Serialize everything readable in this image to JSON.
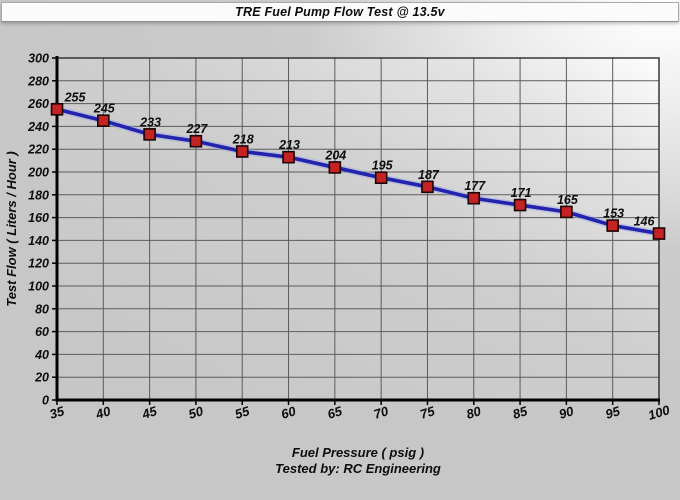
{
  "title_bar": {
    "title": "TRE Fuel Pump Flow Test @ 13.5v"
  },
  "chart_data": {
    "type": "line",
    "title": "TRE Fuel Pump Flow Test @ 13.5v",
    "xlabel": "Fuel Pressure ( psig )",
    "ylabel": "Test Flow ( Liters / Hour )",
    "footnote": "Tested by: RC Engineering",
    "x": [
      35,
      40,
      45,
      50,
      55,
      60,
      65,
      70,
      75,
      80,
      85,
      90,
      95,
      100
    ],
    "values": [
      255,
      245,
      233,
      227,
      218,
      213,
      204,
      195,
      187,
      177,
      171,
      165,
      153,
      146
    ],
    "x_ticks": [
      35,
      40,
      45,
      50,
      55,
      60,
      65,
      70,
      75,
      80,
      85,
      90,
      95,
      100
    ],
    "y_ticks": [
      0,
      20,
      40,
      60,
      80,
      100,
      120,
      140,
      160,
      180,
      200,
      220,
      240,
      260,
      280,
      300
    ],
    "xlim": [
      35,
      100
    ],
    "ylim": [
      0,
      300
    ],
    "grid": true,
    "data_labels": true,
    "legend": "none",
    "colors": {
      "line": "#2323ad",
      "line_halo": "#9aa6df",
      "marker_fill": "#c52323",
      "marker_border": "#1c0303",
      "grid": "#5c5c5c",
      "axis": "#000000",
      "plot_border": "#2a2a2a",
      "text": "#0d0d0d"
    }
  }
}
